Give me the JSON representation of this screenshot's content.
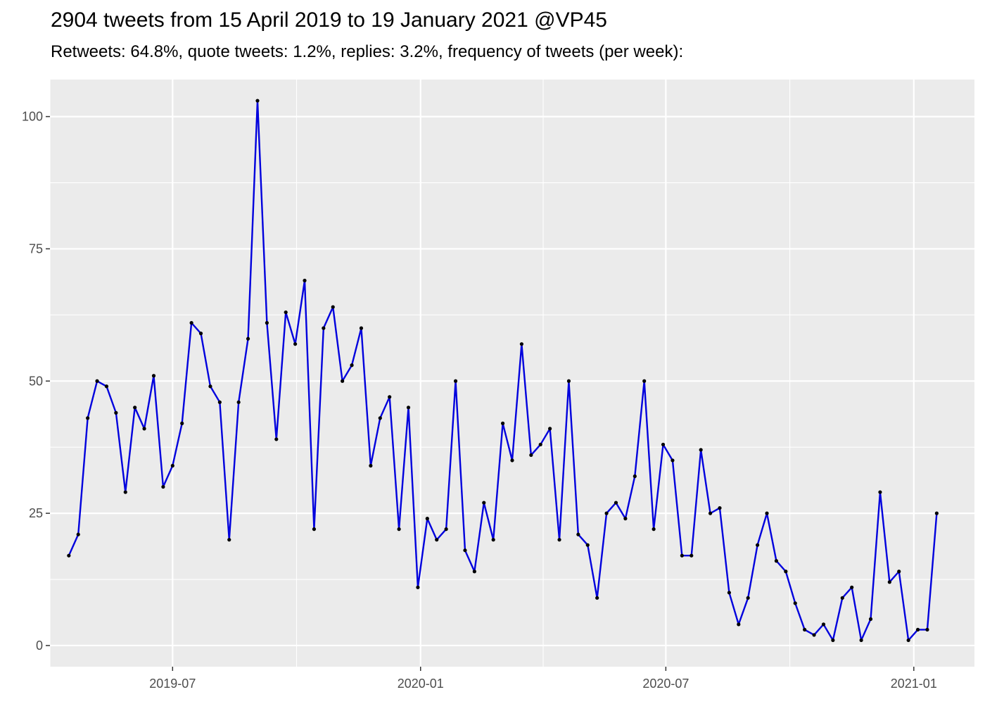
{
  "chart_data": {
    "type": "line",
    "title": "2904 tweets from 15 April 2019 to 19 January 2021 @VP45",
    "subtitle": "Retweets: 64.8%, quote tweets: 1.2%, replies: 3.2%, frequency of tweets (per week):",
    "xlabel": "",
    "ylabel": "",
    "x_start": "2019-04-15",
    "x_step_days": 7,
    "values": [
      17,
      21,
      43,
      50,
      49,
      44,
      29,
      45,
      41,
      51,
      30,
      34,
      42,
      61,
      59,
      49,
      46,
      20,
      46,
      58,
      103,
      61,
      39,
      63,
      57,
      69,
      22,
      60,
      64,
      50,
      53,
      60,
      34,
      43,
      47,
      22,
      45,
      11,
      24,
      20,
      22,
      50,
      18,
      14,
      27,
      20,
      42,
      35,
      57,
      36,
      38,
      41,
      20,
      50,
      21,
      19,
      9,
      25,
      27,
      24,
      32,
      50,
      22,
      38,
      35,
      17,
      17,
      37,
      25,
      26,
      10,
      4,
      9,
      19,
      25,
      16,
      14,
      8,
      3,
      2,
      4,
      1,
      9,
      11,
      1,
      5,
      29,
      12,
      14,
      1,
      3,
      3,
      25
    ],
    "xlim": [
      "2019-04-01",
      "2021-02-15"
    ],
    "ylim": [
      -4,
      107
    ],
    "x_ticks": [
      {
        "date": "2019-07-01",
        "label": "2019-07"
      },
      {
        "date": "2020-01-01",
        "label": "2020-01"
      },
      {
        "date": "2020-07-01",
        "label": "2020-07"
      },
      {
        "date": "2021-01-01",
        "label": "2021-01"
      }
    ],
    "x_minor_ticks": [
      "2019-04-01",
      "2019-10-01",
      "2020-04-01",
      "2020-10-01"
    ],
    "y_ticks": [
      0,
      25,
      50,
      75,
      100
    ],
    "grid": true,
    "line_color": "#0000dd",
    "point_color": "#000000",
    "panel_color": "#ebebeb"
  }
}
